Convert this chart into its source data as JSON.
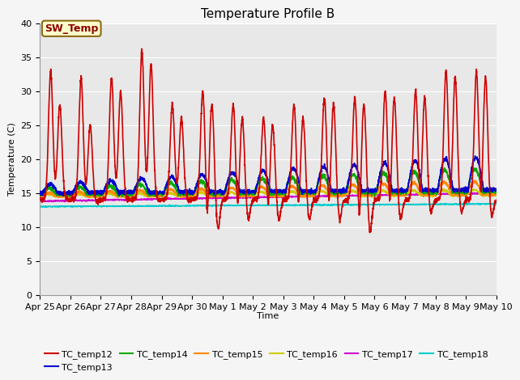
{
  "title": "Temperature Profile B",
  "xlabel": "Time",
  "ylabel": "Temperature (C)",
  "ylim": [
    0,
    40
  ],
  "yticks": [
    0,
    5,
    10,
    15,
    20,
    25,
    30,
    35,
    40
  ],
  "xlim": [
    0,
    15
  ],
  "x_tick_labels": [
    "Apr 25",
    "Apr 26",
    "Apr 27",
    "Apr 28",
    "Apr 29",
    "Apr 30",
    "May 1",
    "May 2",
    "May 3",
    "May 4",
    "May 5",
    "May 6",
    "May 7",
    "May 8",
    "May 9",
    "May 10"
  ],
  "colors": {
    "TC_temp12": "#cc0000",
    "TC_temp13": "#0000cc",
    "TC_temp14": "#00aa00",
    "TC_temp15": "#ff8800",
    "TC_temp16": "#cccc00",
    "TC_temp17": "#cc00cc",
    "TC_temp18": "#00cccc"
  },
  "SW_Temp_box": {
    "text": "SW_Temp",
    "text_color": "#8B0000",
    "bg_color": "#ffffcc",
    "border_color": "#8B6914"
  },
  "background_color": "#e8e8e8",
  "grid_color": "#ffffff",
  "title_fontsize": 11,
  "axis_fontsize": 8,
  "tick_fontsize": 8,
  "fig_width": 6.4,
  "fig_height": 4.8,
  "dpi": 100
}
